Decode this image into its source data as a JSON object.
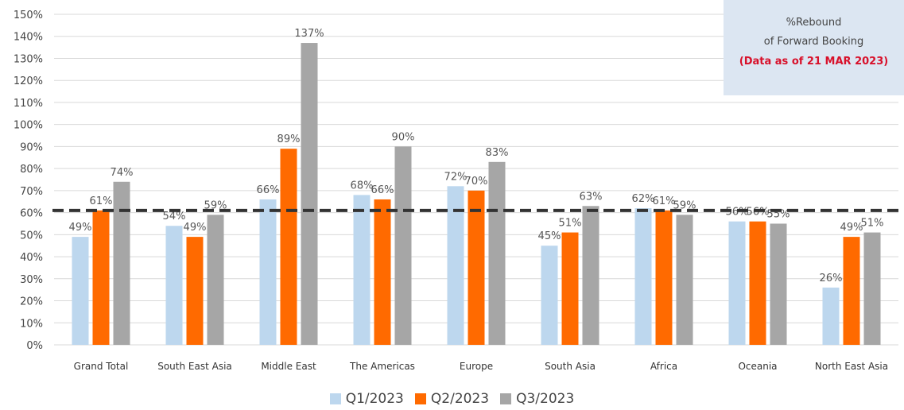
{
  "note": {
    "line1": "%Rebound",
    "line2": "of Forward Booking",
    "line3": "(Data as of 21 MAR 2023)"
  },
  "colors": {
    "q1": "#bdd7ee",
    "q2": "#ff6a00",
    "q3": "#a6a6a6",
    "reference_line": "#333333",
    "note_date": "#d8102a"
  },
  "chart_data": {
    "type": "bar",
    "categories": [
      "Grand Total",
      "South East Asia",
      "Middle East",
      "The Americas",
      "Europe",
      "South Asia",
      "Africa",
      "Oceania",
      "North East Asia"
    ],
    "series": [
      {
        "name": "Q1/2023",
        "values": [
          49,
          54,
          66,
          68,
          72,
          45,
          62,
          56,
          26
        ],
        "labels": [
          "49%",
          "54%",
          "66%",
          "68%",
          "72%",
          "45%",
          "62%",
          "56%",
          "26%"
        ]
      },
      {
        "name": "Q2/2023",
        "values": [
          61,
          49,
          89,
          66,
          70,
          51,
          61,
          56,
          49
        ],
        "labels": [
          "61%",
          "49%",
          "89%",
          "66%",
          "70%",
          "51%",
          "61%",
          "56%",
          "49%"
        ]
      },
      {
        "name": "Q3/2023",
        "values": [
          74,
          59,
          137,
          90,
          83,
          63,
          59,
          55,
          51
        ],
        "labels": [
          "74%",
          "59%",
          "137%",
          "90%",
          "83%",
          "63%",
          "59%",
          "55%",
          "51%"
        ]
      }
    ],
    "reference_line": 61,
    "ylim": [
      0,
      150
    ],
    "yticks": [
      "0%",
      "10%",
      "20%",
      "30%",
      "40%",
      "50%",
      "60%",
      "70%",
      "80%",
      "90%",
      "100%",
      "110%",
      "120%",
      "130%",
      "140%",
      "150%"
    ],
    "grid": true,
    "legend": "bottom-center",
    "title": "",
    "xlabel": "",
    "ylabel": ""
  }
}
